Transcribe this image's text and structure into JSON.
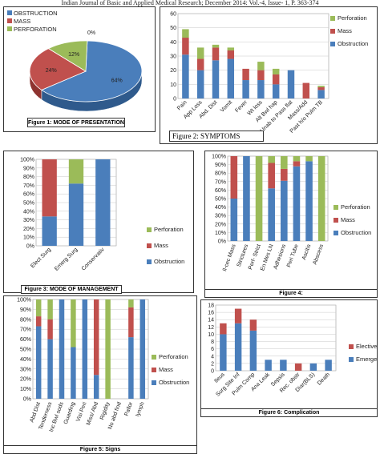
{
  "header": "Indian Journal of Basic and Applied Medical Research; December 2014: Vol.-4, Issue- 1, P. 363-374",
  "colors": {
    "obstruction": "#4a7ebb",
    "mass": "#c0504d",
    "perforation": "#9bbb59",
    "elective": "#c0504d",
    "emergency": "#4a7ebb"
  },
  "chart_data": [
    {
      "id": "fig1",
      "type": "pie",
      "caption": "Figure 1: MODE OF PRESENTATION",
      "legend": [
        "OBSTRUCTION",
        "MASS",
        "PERFORATION"
      ],
      "values": [
        64,
        24,
        12
      ],
      "labels": [
        "64%",
        "24%",
        "12%"
      ],
      "extra_label": "0%"
    },
    {
      "id": "fig2",
      "type": "bar",
      "stacked": true,
      "caption": "Figure 2: SYMPTOMS",
      "categories": [
        "Pain",
        "App Loss",
        "Abd. Dist",
        "Vomit",
        "Fever",
        "Wt loss",
        "Alt Bwl hap",
        "Unab to Pass flat",
        "Mass/Add",
        "Past h/o Pulm TB"
      ],
      "ylim": [
        0,
        60
      ],
      "yticks": [
        0,
        10,
        20,
        30,
        40,
        50,
        60
      ],
      "series": [
        {
          "name": "Obstruction",
          "values": [
            31,
            20,
            27,
            28,
            13,
            13,
            10,
            20,
            0,
            6
          ]
        },
        {
          "name": "Mass",
          "values": [
            12,
            8,
            9,
            6,
            8,
            7,
            7,
            0,
            11,
            2
          ]
        },
        {
          "name": "Perforation",
          "values": [
            6,
            8,
            2,
            2,
            0,
            6,
            4,
            0,
            0,
            1
          ]
        }
      ]
    },
    {
      "id": "fig3",
      "type": "bar",
      "stacked": true,
      "percent": true,
      "caption": "Figure 3: MODE OF MANAGEMENT",
      "categories": [
        "Elect Surg",
        "Emerg Surg",
        "Conservativ"
      ],
      "yticks": [
        "0%",
        "10%",
        "20%",
        "30%",
        "40%",
        "50%",
        "60%",
        "70%",
        "80%",
        "90%",
        "100%"
      ],
      "series": [
        {
          "name": "Obstruction",
          "values": [
            34,
            72,
            100
          ]
        },
        {
          "name": "Mass",
          "values": [
            66,
            0,
            0
          ]
        },
        {
          "name": "Perforation",
          "values": [
            0,
            28,
            0
          ]
        }
      ]
    },
    {
      "id": "fig4",
      "type": "bar",
      "stacked": true,
      "percent": true,
      "caption": "Figure 4:",
      "categories": [
        "Il-cec Mass",
        "Strictures",
        "Perf- Strict",
        "En Mes LN",
        "Adhesions",
        "Peri Tube",
        "Ascitis",
        "Abscess"
      ],
      "yticks": [
        "0%",
        "10%",
        "20%",
        "30%",
        "40%",
        "50%",
        "60%",
        "70%",
        "80%",
        "90%",
        "100%"
      ],
      "series": [
        {
          "name": "Obstruction",
          "values": [
            50,
            100,
            0,
            62,
            71,
            88,
            94,
            0
          ]
        },
        {
          "name": "Mass",
          "values": [
            50,
            0,
            0,
            30,
            14,
            6,
            0,
            0
          ]
        },
        {
          "name": "Perforation",
          "values": [
            0,
            0,
            100,
            8,
            15,
            6,
            6,
            100
          ]
        }
      ]
    },
    {
      "id": "fig5",
      "type": "bar",
      "stacked": true,
      "percent": true,
      "caption": "Figure 5: Signs",
      "categories": [
        "Abd Dist",
        "Tenderness",
        "Inc Bwl sods",
        "Guarding",
        "Visi Peri",
        "Miss/ Abd",
        "Rigidity",
        "No abd find",
        "Pallor",
        "lymph"
      ],
      "yticks": [
        "0%",
        "10%",
        "20%",
        "30%",
        "40%",
        "50%",
        "60%",
        "70%",
        "80%",
        "90%",
        "100%"
      ],
      "series": [
        {
          "name": "Obstruction",
          "values": [
            73,
            60,
            100,
            52,
            100,
            24,
            0,
            0,
            62,
            100
          ]
        },
        {
          "name": "Mass",
          "values": [
            10,
            20,
            0,
            0,
            0,
            76,
            0,
            0,
            30,
            0
          ]
        },
        {
          "name": "Perforation",
          "values": [
            17,
            20,
            0,
            48,
            0,
            0,
            100,
            0,
            8,
            0
          ]
        }
      ]
    },
    {
      "id": "fig6",
      "type": "bar",
      "stacked": true,
      "caption": "Figure 6: Complication",
      "categories": [
        "Ileus",
        "Surg Site Inf",
        "Pulm Comp",
        "Ana Leak",
        "Sepsis",
        "Rec. obstr",
        "Diar(BLS)",
        "Death"
      ],
      "ylim": [
        0,
        18
      ],
      "yticks": [
        0,
        2,
        4,
        6,
        8,
        10,
        12,
        14,
        16,
        18
      ],
      "series": [
        {
          "name": "Emergency",
          "values": [
            10,
            13,
            11,
            3,
            3,
            0,
            2,
            3
          ]
        },
        {
          "name": "Elective",
          "values": [
            3,
            4,
            3,
            0,
            0,
            2,
            0,
            0
          ]
        }
      ],
      "legend": [
        "Elective",
        "Emergency"
      ]
    }
  ]
}
